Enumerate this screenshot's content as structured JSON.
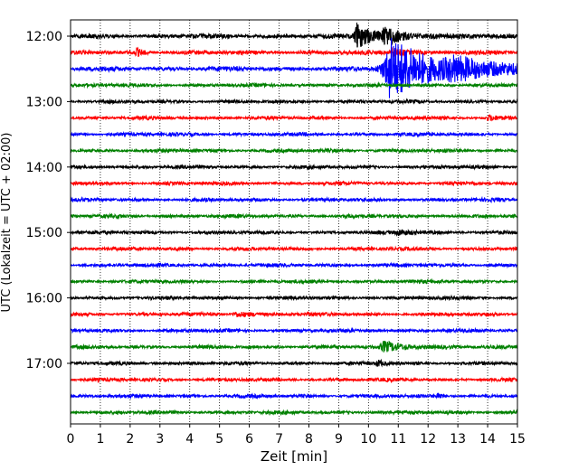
{
  "chart_data": {
    "type": "line",
    "chart_kind": "helicorder (seismogram drum plot)",
    "xlabel": "Zeit  [min]",
    "ylabel": "UTC (Lokalzeit = UTC + 02:00)",
    "xlim": [
      0,
      15
    ],
    "x_ticks": [
      0,
      1,
      2,
      3,
      4,
      5,
      6,
      7,
      8,
      9,
      10,
      11,
      12,
      13,
      14,
      15
    ],
    "x_tick_labels": [
      "0",
      "1",
      "2",
      "3",
      "4",
      "5",
      "6",
      "7",
      "8",
      "9",
      "10",
      "11",
      "12",
      "13",
      "14",
      "15"
    ],
    "x_grid": "dotted vertical lines at each minute",
    "trace_interval_minutes": 15,
    "y_tick_labels": [
      "12:00",
      "13:00",
      "14:00",
      "15:00",
      "16:00",
      "17:00"
    ],
    "color_cycle": [
      "#000000",
      "#ff0000",
      "#0000ff",
      "#008000"
    ],
    "traces": [
      {
        "start": "12:00",
        "color": "#000000",
        "level": "strong",
        "events": [
          {
            "x": 9.6,
            "amp": 1.6,
            "width": 0.5
          },
          {
            "x": 10.5,
            "amp": 0.9,
            "width": 0.7
          }
        ]
      },
      {
        "start": "12:15",
        "color": "#ff0000",
        "level": "moderate",
        "events": [
          {
            "x": 2.2,
            "amp": 0.5,
            "width": 0.2
          },
          {
            "x": 10.8,
            "amp": 0.6,
            "width": 0.4
          }
        ]
      },
      {
        "start": "12:30",
        "color": "#0000ff",
        "level": "strong",
        "events": [
          {
            "x": 10.7,
            "amp": 3.8,
            "width": 1.5
          },
          {
            "x": 12.8,
            "amp": 0.8,
            "width": 1.6
          }
        ]
      },
      {
        "start": "12:45",
        "color": "#008000",
        "level": "background",
        "events": []
      },
      {
        "start": "13:00",
        "color": "#000000",
        "level": "background",
        "events": []
      },
      {
        "start": "13:15",
        "color": "#ff0000",
        "level": "background",
        "events": [
          {
            "x": 14.0,
            "amp": 0.3,
            "width": 0.4
          }
        ]
      },
      {
        "start": "13:30",
        "color": "#0000ff",
        "level": "background",
        "events": []
      },
      {
        "start": "13:45",
        "color": "#008000",
        "level": "background",
        "events": []
      },
      {
        "start": "14:00",
        "color": "#000000",
        "level": "background",
        "events": []
      },
      {
        "start": "14:15",
        "color": "#ff0000",
        "level": "background",
        "events": []
      },
      {
        "start": "14:30",
        "color": "#0000ff",
        "level": "background",
        "events": []
      },
      {
        "start": "14:45",
        "color": "#008000",
        "level": "background",
        "events": []
      },
      {
        "start": "15:00",
        "color": "#000000",
        "level": "background",
        "events": [
          {
            "x": 11.0,
            "amp": 0.3,
            "width": 0.6
          }
        ]
      },
      {
        "start": "15:15",
        "color": "#ff0000",
        "level": "background",
        "events": []
      },
      {
        "start": "15:30",
        "color": "#0000ff",
        "level": "background",
        "events": []
      },
      {
        "start": "15:45",
        "color": "#008000",
        "level": "background",
        "events": []
      },
      {
        "start": "16:00",
        "color": "#000000",
        "level": "background",
        "events": []
      },
      {
        "start": "16:15",
        "color": "#ff0000",
        "level": "background",
        "events": [
          {
            "x": 5.5,
            "amp": 0.3,
            "width": 0.6
          }
        ]
      },
      {
        "start": "16:30",
        "color": "#0000ff",
        "level": "background",
        "events": []
      },
      {
        "start": "16:45",
        "color": "#008000",
        "level": "background",
        "events": [
          {
            "x": 10.5,
            "amp": 0.6,
            "width": 0.8
          }
        ]
      },
      {
        "start": "17:00",
        "color": "#000000",
        "level": "background",
        "events": [
          {
            "x": 10.3,
            "amp": 0.4,
            "width": 0.2
          }
        ]
      },
      {
        "start": "17:15",
        "color": "#ff0000",
        "level": "background",
        "events": []
      },
      {
        "start": "17:30",
        "color": "#0000ff",
        "level": "background",
        "events": [
          {
            "x": 12.3,
            "amp": 0.5,
            "width": 0.15
          }
        ]
      },
      {
        "start": "17:45",
        "color": "#008000",
        "level": "background",
        "events": []
      }
    ]
  }
}
